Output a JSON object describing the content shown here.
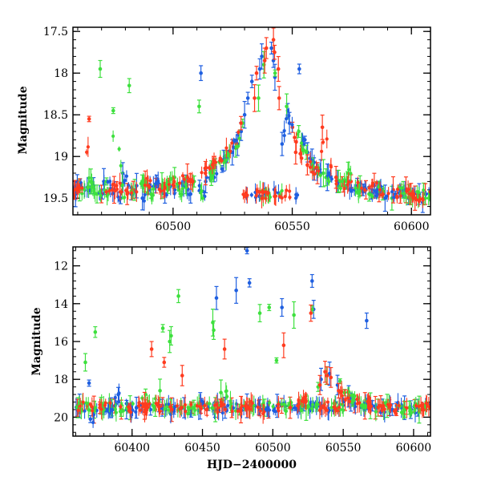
{
  "chart_data": [
    {
      "type": "scatter",
      "panel": "top",
      "xlabel": "",
      "ylabel": "Magnitude",
      "xlim": [
        60458,
        60608
      ],
      "ylim": [
        19.7,
        17.45
      ],
      "y_inverted": true,
      "xticks": [
        60500,
        60550,
        60600
      ],
      "xtick_labels": [
        "60500",
        "60550",
        "60600"
      ],
      "yticks": [
        17.5,
        18,
        18.5,
        19,
        19.5
      ],
      "ytick_labels": [
        "17.5",
        "18",
        "18.5",
        "19",
        "19.5"
      ],
      "grid": false,
      "series": [
        {
          "color": "#1f5fe0",
          "x": [
            60458,
            60461,
            60464,
            60467,
            60470,
            60472,
            60475,
            60478,
            60480,
            60483,
            60486,
            60488,
            60490,
            60493,
            60496,
            60499,
            60501,
            60504,
            60507,
            60510,
            60512,
            60514,
            60516,
            60518,
            60520,
            60522,
            60524,
            60526,
            60528,
            60530,
            60532,
            60534,
            60536,
            60538,
            60540,
            60542,
            60544,
            60546,
            60548,
            60550,
            60552,
            60554,
            60556,
            60558,
            60560,
            60563,
            60566,
            60569,
            60572,
            60575,
            60578,
            60581,
            60584,
            60587,
            60590,
            60593,
            60596,
            60599,
            60602,
            60605
          ],
          "y": [
            19.45,
            19.3,
            19.4,
            19.35,
            19.45,
            19.3,
            19.4,
            19.5,
            19.2,
            19.45,
            19.35,
            19.5,
            19.4,
            19.3,
            19.45,
            19.35,
            19.4,
            19.3,
            19.45,
            19.35,
            18.0,
            19.3,
            19.2,
            19.25,
            19.15,
            19.05,
            18.95,
            18.85,
            18.7,
            18.5,
            18.3,
            18.1,
            17.95,
            17.8,
            17.7,
            17.85,
            18.05,
            18.85,
            18.45,
            18.6,
            17.95,
            18.8,
            18.95,
            19.05,
            19.15,
            19.2,
            19.25,
            19.3,
            19.35,
            19.4,
            19.35,
            19.4,
            19.45,
            19.4,
            19.5,
            19.45,
            19.4,
            19.5,
            19.45,
            19.55
          ]
        },
        {
          "color": "#3ee03e",
          "x": [
            60462,
            60465,
            60468,
            60471,
            60473,
            60476,
            60479,
            60482,
            60485,
            60487,
            60491,
            60494,
            60497,
            60500,
            60503,
            60506,
            60509,
            60511,
            60515,
            60519,
            60523,
            60527,
            60531,
            60535,
            60539,
            60543,
            60547,
            60551,
            60555,
            60559,
            60562,
            60565,
            60568,
            60571,
            60574,
            60577,
            60580,
            60583,
            60586,
            60589,
            60592,
            60595,
            60598,
            60601,
            60604
          ],
          "y": [
            19.4,
            19.3,
            19.45,
            17.95,
            19.3,
            18.45,
            19.35,
            18.15,
            19.4,
            19.3,
            19.45,
            19.35,
            19.4,
            19.25,
            19.45,
            19.35,
            19.3,
            18.4,
            19.2,
            19.1,
            19.0,
            18.9,
            18.6,
            18.3,
            17.9,
            18.0,
            18.4,
            18.7,
            18.95,
            19.1,
            19.2,
            19.25,
            19.3,
            19.35,
            19.2,
            19.4,
            19.35,
            19.45,
            19.4,
            19.45,
            19.5,
            19.4,
            19.45,
            19.5,
            19.45
          ]
        },
        {
          "color": "#ff3b1f",
          "x": [
            60459,
            60462,
            60466,
            60469,
            60474,
            60477,
            60481,
            60484,
            60489,
            60492,
            60495,
            60498,
            60502,
            60505,
            60508,
            60513,
            60517,
            60521,
            60525,
            60529,
            60533,
            60536,
            60538,
            60540,
            60541,
            60542,
            60544,
            60546,
            60549,
            60553,
            60557,
            60561,
            60564,
            60567,
            60570,
            60573,
            60576,
            60579,
            60582,
            60585,
            60588,
            60591,
            60594,
            60597,
            60600,
            60603,
            60606
          ],
          "y": [
            19.4,
            19.35,
            18.55,
            19.45,
            19.4,
            19.35,
            19.45,
            19.4,
            19.3,
            19.35,
            19.4,
            19.3,
            19.35,
            19.25,
            19.3,
            19.2,
            19.1,
            19.0,
            18.85,
            18.6,
            18.3,
            18.0,
            17.85,
            17.7,
            17.6,
            17.75,
            17.95,
            18.3,
            18.65,
            18.95,
            19.1,
            19.2,
            18.65,
            19.25,
            19.3,
            19.35,
            19.3,
            19.35,
            19.4,
            19.35,
            19.45,
            19.4,
            19.45,
            19.4,
            19.45,
            19.5,
            19.45
          ]
        }
      ]
    },
    {
      "type": "scatter",
      "panel": "bottom",
      "xlabel": "HJD−2400000",
      "ylabel": "Magnitude",
      "xlim": [
        60358,
        60612
      ],
      "ylim": [
        21.0,
        11.0
      ],
      "y_inverted": true,
      "xticks": [
        60400,
        60450,
        60500,
        60550,
        60600
      ],
      "xtick_labels": [
        "60400",
        "60450",
        "60500",
        "60550",
        "60600"
      ],
      "yticks": [
        12,
        14,
        16,
        18,
        20
      ],
      "ytick_labels": [
        "12",
        "14",
        "16",
        "18",
        "20"
      ],
      "grid": false,
      "series": [
        {
          "color": "#1f5fe0",
          "x": [
            60365,
            60368,
            60372,
            60378,
            60385,
            60392,
            60398,
            60405,
            60411,
            60418,
            60424,
            60430,
            60436,
            60442,
            60449,
            60455,
            60458,
            60462,
            60468,
            60475,
            60481,
            60482,
            60484,
            60490,
            60497,
            60504,
            60509,
            60515,
            60522,
            60528,
            60530,
            60536,
            60540,
            60546,
            60552,
            60558,
            60564,
            60566,
            60570,
            60576,
            60582,
            60588,
            60594,
            60600,
            60606
          ],
          "y": [
            19.4,
            18.2,
            20.1,
            19.6,
            19.5,
            18.8,
            19.6,
            19.5,
            19.6,
            19.4,
            19.5,
            19.7,
            19.5,
            19.6,
            19.4,
            19.5,
            13.7,
            19.6,
            19.5,
            13.3,
            19.4,
            11.2,
            12.9,
            19.5,
            19.6,
            19.4,
            14.2,
            19.5,
            19.4,
            14.3,
            12.8,
            18.0,
            17.7,
            18.3,
            18.9,
            19.2,
            19.3,
            14.9,
            19.4,
            19.5,
            19.6,
            19.4,
            19.5,
            19.6,
            19.5
          ]
        },
        {
          "color": "#3ee03e",
          "x": [
            60362,
            60368,
            60371,
            60374,
            60380,
            60387,
            60394,
            60401,
            60407,
            60414,
            60420,
            60424,
            60425,
            60426,
            60429,
            60432,
            60438,
            60444,
            60451,
            60457,
            60459,
            60460,
            60466,
            60473,
            60479,
            60485,
            60488,
            60493,
            60497,
            60503,
            60510,
            60516,
            60522,
            60529,
            60534,
            60539,
            60545,
            60551,
            60557,
            60563,
            60569,
            60575,
            60581,
            60587,
            60593,
            60599,
            60605
          ],
          "y": [
            19.5,
            17.1,
            19.6,
            15.5,
            19.4,
            19.5,
            19.6,
            19.5,
            18.8,
            19.6,
            18.6,
            15.3,
            15.7,
            16.0,
            19.4,
            13.6,
            19.6,
            19.5,
            19.4,
            15.0,
            15.4,
            19.6,
            18.7,
            19.5,
            19.6,
            19.4,
            14.5,
            19.5,
            14.2,
            17.0,
            19.4,
            14.6,
            19.5,
            14.3,
            18.4,
            17.8,
            18.1,
            18.7,
            19.1,
            19.3,
            19.4,
            19.5,
            19.4,
            19.5,
            19.6,
            19.5,
            19.6
          ]
        },
        {
          "color": "#ff3b1f",
          "x": [
            60360,
            60366,
            60373,
            60379,
            60386,
            60393,
            60399,
            60406,
            60412,
            60416,
            60419,
            60421,
            60423,
            60427,
            60431,
            60433,
            60440,
            60446,
            60453,
            60460,
            60465,
            60467,
            60470,
            60477,
            60483,
            60489,
            60495,
            60502,
            60507,
            60508,
            60514,
            60520,
            60526,
            60529,
            60533,
            60538,
            60540,
            60542,
            60548,
            60554,
            60560,
            60566,
            60572,
            60578,
            60584,
            60590,
            60596,
            60602
          ],
          "y": [
            19.5,
            19.4,
            19.6,
            19.5,
            19.4,
            19.6,
            19.5,
            19.4,
            19.6,
            16.4,
            19.5,
            17.1,
            19.4,
            19.5,
            19.6,
            17.8,
            19.5,
            19.4,
            19.6,
            19.5,
            19.4,
            16.4,
            19.5,
            19.6,
            19.4,
            19.5,
            19.6,
            19.5,
            16.2,
            19.4,
            19.5,
            19.3,
            18.9,
            14.5,
            18.3,
            17.8,
            17.6,
            17.9,
            18.6,
            19.1,
            19.3,
            19.4,
            19.5,
            19.4,
            19.5,
            19.6,
            19.5,
            19.4
          ]
        }
      ]
    }
  ]
}
